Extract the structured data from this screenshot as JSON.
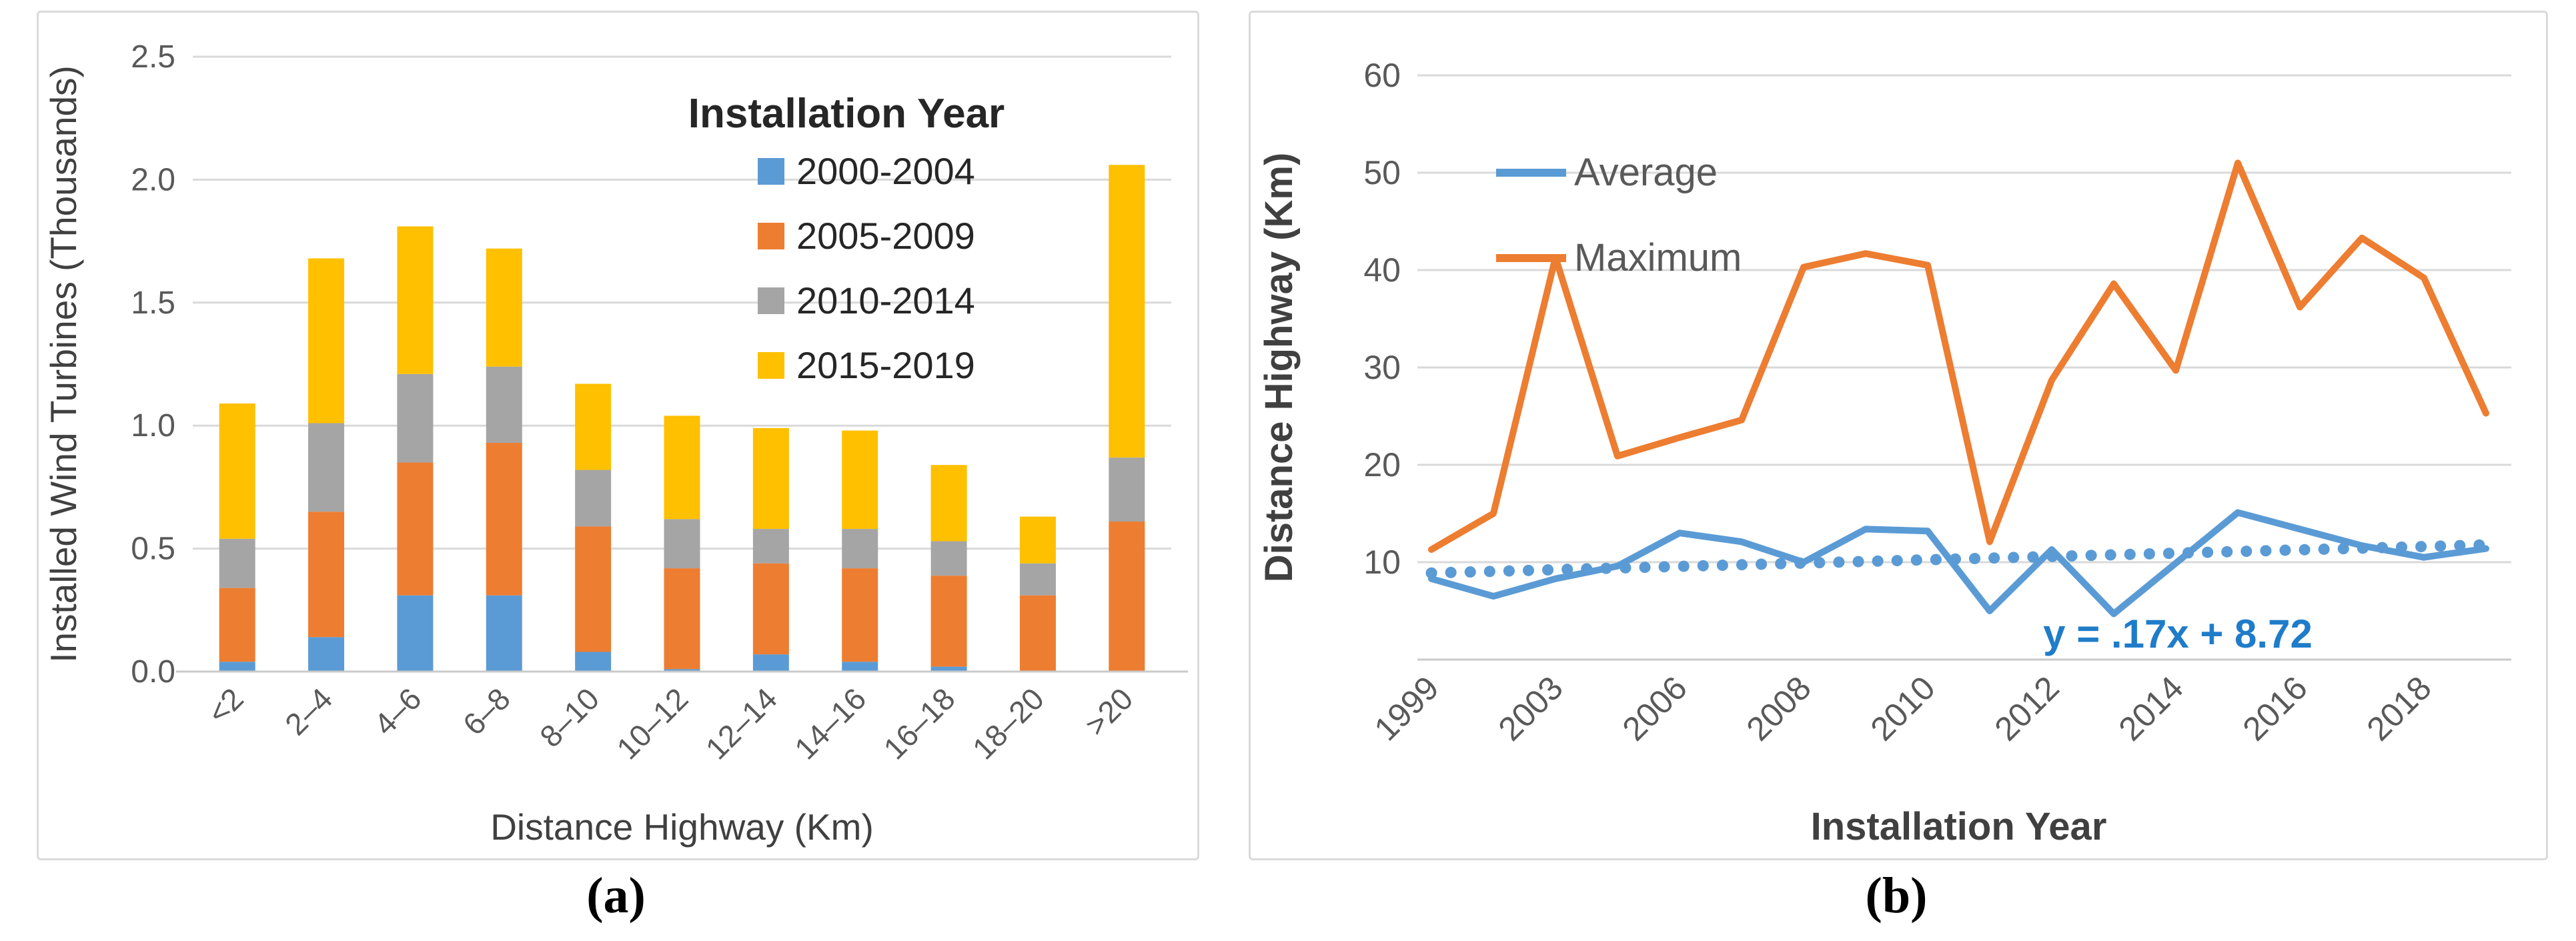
{
  "figure": {
    "captions": {
      "a": "(a)",
      "b": "(b)"
    }
  },
  "colors": {
    "series_blue": "#5B9BD5",
    "series_orange": "#ED7D31",
    "series_gray": "#A5A5A5",
    "series_yellow": "#FFC000",
    "equation_blue": "#1F7CC9",
    "tick_text": "#595959",
    "title_text": "#404040",
    "gridline": "#d9d9d9"
  },
  "chart_data": [
    {
      "type": "bar",
      "stacked": true,
      "legend_title": "Installation Year",
      "xlabel": "Distance Highway (Km)",
      "ylabel": "Installed Wind Turbines (Thousands)",
      "ylim": [
        0,
        2.5
      ],
      "yticks": [
        "0.0",
        "0.5",
        "1.0",
        "1.5",
        "2.0",
        "2.5"
      ],
      "grid": true,
      "legend_position": "top-right-inside",
      "categories": [
        "<2",
        "2–4",
        "4–6",
        "6–8",
        "8–10",
        "10–12",
        "12–14",
        "14–16",
        "16–18",
        "18–20",
        ">20"
      ],
      "series": [
        {
          "name": "2000-2004",
          "color": "#5B9BD5",
          "values": [
            0.04,
            0.14,
            0.31,
            0.31,
            0.08,
            0.01,
            0.07,
            0.04,
            0.02,
            0,
            0
          ]
        },
        {
          "name": "2005-2009",
          "color": "#ED7D31",
          "values": [
            0.3,
            0.51,
            0.54,
            0.62,
            0.51,
            0.41,
            0.37,
            0.38,
            0.37,
            0.31,
            0.61
          ]
        },
        {
          "name": "2010-2014",
          "color": "#A5A5A5",
          "values": [
            0.2,
            0.36,
            0.36,
            0.31,
            0.23,
            0.2,
            0.14,
            0.16,
            0.14,
            0.13,
            0.26
          ]
        },
        {
          "name": "2015-2019",
          "color": "#FFC000",
          "values": [
            0.55,
            0.67,
            0.6,
            0.48,
            0.35,
            0.42,
            0.41,
            0.4,
            0.31,
            0.19,
            1.19
          ]
        }
      ]
    },
    {
      "type": "line",
      "xlabel": "Installation Year",
      "ylabel": "Distance Highway (Km)",
      "ylim": [
        0,
        60
      ],
      "yticks": [
        "10",
        "20",
        "30",
        "40",
        "50",
        "60"
      ],
      "grid": true,
      "legend_position": "top-left-inside",
      "x": [
        1999,
        2001,
        2003,
        2005,
        2006,
        2007,
        2008,
        2009,
        2010,
        2011,
        2012,
        2013,
        2014,
        2015,
        2016,
        2017,
        2018,
        2019
      ],
      "x_tick_labels_shown": [
        "1999",
        "2003",
        "2006",
        "2008",
        "2010",
        "2012",
        "2014",
        "2016",
        "2018"
      ],
      "series": [
        {
          "name": "Average",
          "color": "#5B9BD5",
          "values": [
            8.3,
            6.5,
            8.3,
            9.6,
            13.0,
            12.1,
            10.0,
            13.4,
            13.2,
            5.0,
            11.3,
            4.7,
            9.9,
            15.1,
            13.4,
            11.7,
            10.5,
            11.4
          ]
        },
        {
          "name": "Maximum",
          "color": "#ED7D31",
          "values": [
            11.3,
            15.0,
            41.3,
            20.9,
            22.8,
            24.6,
            40.3,
            41.7,
            40.5,
            12.1,
            28.7,
            38.6,
            29.7,
            51.0,
            36.2,
            43.3,
            39.2,
            25.3
          ]
        }
      ],
      "trendline": {
        "for_series": "Average",
        "equation_label": "y = .17x + 8.72",
        "slope": 0.17,
        "intercept": 8.72,
        "style": "dotted",
        "color": "#5B9BD5",
        "equation_color": "#1F7CC9"
      }
    }
  ]
}
